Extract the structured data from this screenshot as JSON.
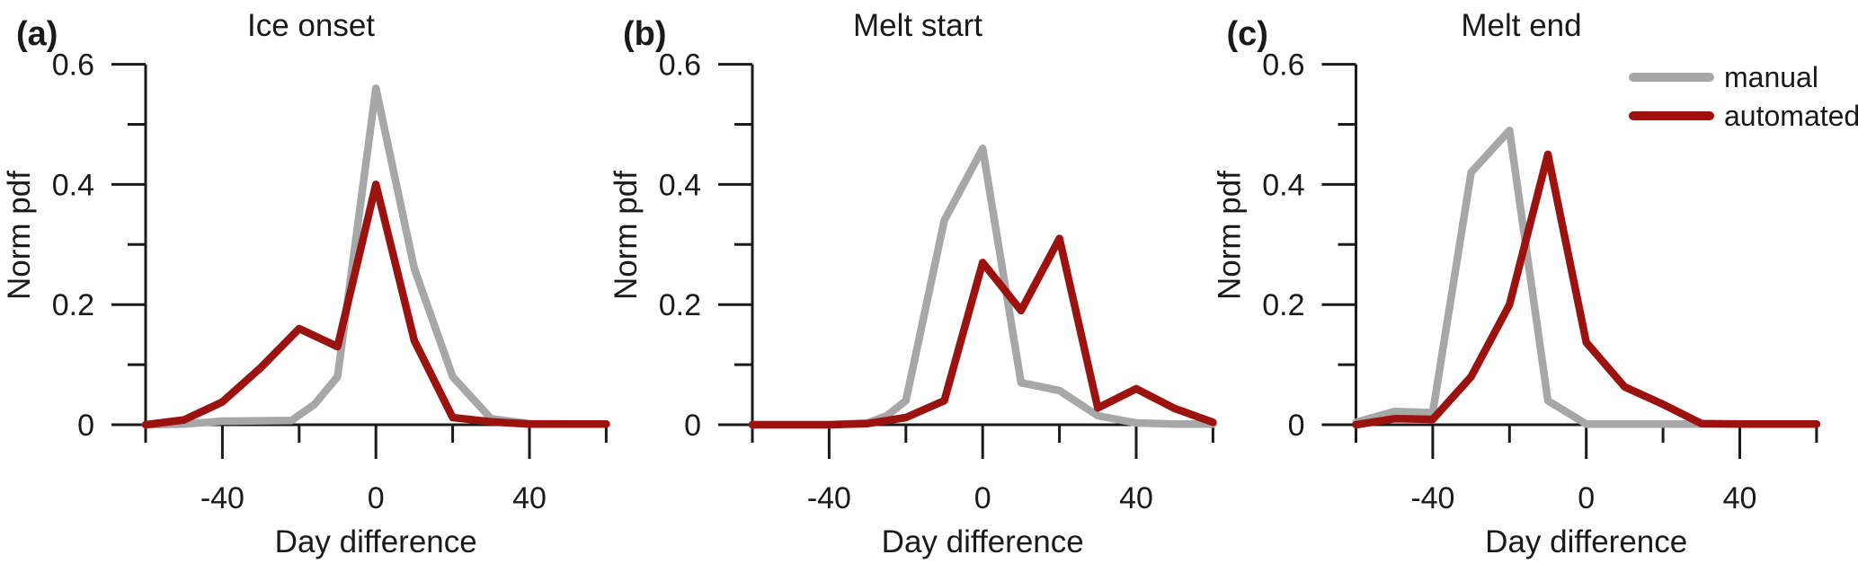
{
  "figure": {
    "background": "#ffffff",
    "axis_color": "#1a1a1a",
    "series_colors": {
      "manual": "#a7a7a7",
      "automated": "#9c120e"
    },
    "legend": {
      "items": [
        {
          "label": "manual",
          "color_key": "manual"
        },
        {
          "label": "automated",
          "color_key": "automated"
        }
      ],
      "position": "top-right-of-third-panel"
    },
    "y_axis": {
      "label": "Norm pdf",
      "range": [
        0,
        0.6
      ],
      "major_ticks": [
        0,
        0.2,
        0.4,
        0.6
      ],
      "major_tick_labels": [
        "0",
        "0.2",
        "0.4",
        "0.6"
      ],
      "minor_ticks": [
        0.1,
        0.3,
        0.5
      ]
    },
    "x_axis": {
      "label": "Day difference",
      "range": [
        -60,
        60
      ],
      "major_ticks": [
        -40,
        0,
        40
      ],
      "major_tick_labels": [
        "-40",
        "0",
        "40"
      ],
      "minor_ticks": [
        -60,
        -20,
        20,
        60
      ]
    }
  },
  "chart_data": [
    {
      "type": "line",
      "letter": "(a)",
      "title": "Ice onset",
      "xlabel": "Day difference",
      "ylabel": "Norm pdf",
      "xlim": [
        -60,
        60
      ],
      "ylim": [
        0,
        0.6
      ],
      "grid": false,
      "series": [
        {
          "name": "manual",
          "points": [
            [
              -60,
              0
            ],
            [
              -50,
              0.001
            ],
            [
              -40,
              0.006
            ],
            [
              -22,
              0.007
            ],
            [
              -16,
              0.034
            ],
            [
              -10,
              0.08
            ],
            [
              0,
              0.56
            ],
            [
              10,
              0.26
            ],
            [
              20,
              0.08
            ],
            [
              30,
              0.01
            ],
            [
              40,
              0.002
            ],
            [
              50,
              0.001
            ],
            [
              60,
              0.001
            ]
          ]
        },
        {
          "name": "automated",
          "points": [
            [
              -60,
              0
            ],
            [
              -50,
              0.008
            ],
            [
              -40,
              0.038
            ],
            [
              -30,
              0.095
            ],
            [
              -20,
              0.16
            ],
            [
              -10,
              0.13
            ],
            [
              0,
              0.4
            ],
            [
              10,
              0.14
            ],
            [
              20,
              0.012
            ],
            [
              30,
              0.005
            ],
            [
              40,
              0.001
            ],
            [
              50,
              0.001
            ],
            [
              60,
              0.001
            ]
          ]
        }
      ]
    },
    {
      "type": "line",
      "letter": "(b)",
      "title": "Melt start",
      "xlabel": "Day difference",
      "ylabel": "Norm pdf",
      "xlim": [
        -60,
        60
      ],
      "ylim": [
        0,
        0.6
      ],
      "grid": false,
      "series": [
        {
          "name": "manual",
          "points": [
            [
              -60,
              0
            ],
            [
              -50,
              0
            ],
            [
              -40,
              0
            ],
            [
              -30,
              0.003
            ],
            [
              -25,
              0.015
            ],
            [
              -20,
              0.04
            ],
            [
              -10,
              0.34
            ],
            [
              0,
              0.46
            ],
            [
              10,
              0.07
            ],
            [
              20,
              0.057
            ],
            [
              30,
              0.015
            ],
            [
              40,
              0.003
            ],
            [
              50,
              0.001
            ],
            [
              60,
              0.001
            ]
          ]
        },
        {
          "name": "automated",
          "points": [
            [
              -60,
              0
            ],
            [
              -50,
              0
            ],
            [
              -40,
              0
            ],
            [
              -30,
              0.002
            ],
            [
              -20,
              0.012
            ],
            [
              -10,
              0.04
            ],
            [
              0,
              0.27
            ],
            [
              10,
              0.19
            ],
            [
              20,
              0.31
            ],
            [
              30,
              0.028
            ],
            [
              40,
              0.06
            ],
            [
              50,
              0.027
            ],
            [
              60,
              0.004
            ]
          ]
        }
      ]
    },
    {
      "type": "line",
      "letter": "(c)",
      "title": "Melt end",
      "xlabel": "Day difference",
      "ylabel": "Norm pdf",
      "xlim": [
        -60,
        60
      ],
      "ylim": [
        0,
        0.6
      ],
      "grid": false,
      "series": [
        {
          "name": "manual",
          "points": [
            [
              -60,
              0.004
            ],
            [
              -50,
              0.022
            ],
            [
              -40,
              0.02
            ],
            [
              -30,
              0.42
            ],
            [
              -20,
              0.49
            ],
            [
              -10,
              0.04
            ],
            [
              0,
              0.001
            ],
            [
              10,
              0.001
            ],
            [
              20,
              0.001
            ],
            [
              30,
              0.001
            ],
            [
              40,
              0.001
            ],
            [
              50,
              0.001
            ],
            [
              60,
              0.001
            ]
          ]
        },
        {
          "name": "automated",
          "points": [
            [
              -60,
              0
            ],
            [
              -50,
              0.01
            ],
            [
              -40,
              0.009
            ],
            [
              -30,
              0.08
            ],
            [
              -20,
              0.2
            ],
            [
              -10,
              0.45
            ],
            [
              0,
              0.137
            ],
            [
              10,
              0.063
            ],
            [
              20,
              0.034
            ],
            [
              30,
              0.002
            ],
            [
              40,
              0.001
            ],
            [
              50,
              0.001
            ],
            [
              60,
              0.001
            ]
          ]
        }
      ]
    }
  ]
}
